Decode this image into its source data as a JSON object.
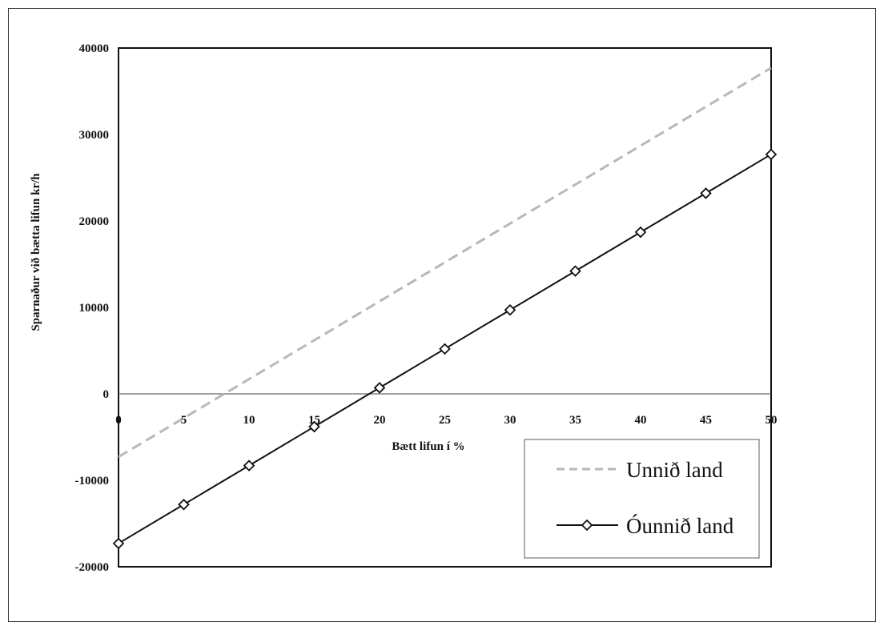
{
  "chart_data": {
    "type": "line",
    "title": "",
    "xlabel": "Bætt lifun í %",
    "ylabel": "Sparnaður við bætta lifun kr/h",
    "x": [
      0,
      5,
      10,
      15,
      20,
      25,
      30,
      35,
      40,
      45,
      50
    ],
    "xticks": [
      "0",
      "5",
      "10",
      "15",
      "20",
      "25",
      "30",
      "35",
      "40",
      "45",
      "50"
    ],
    "yticks": [
      "40000",
      "30000",
      "20000",
      "10000",
      "0",
      "-10000",
      "-20000"
    ],
    "xlim": [
      0,
      50
    ],
    "ylim": [
      -20000,
      40000
    ],
    "grid": false,
    "legend_position": "bottom-right",
    "series": [
      {
        "name": "Unnið land",
        "style": "dashed",
        "color": "#b8b8b8",
        "marker": "none",
        "values": [
          -7300,
          -2800,
          1700,
          6200,
          10700,
          15200,
          19700,
          24200,
          28700,
          33200,
          37700
        ]
      },
      {
        "name": "Óunnið land",
        "style": "solid",
        "color": "#111111",
        "marker": "diamond",
        "values": [
          -17300,
          -12800,
          -8300,
          -3800,
          700,
          5200,
          9700,
          14200,
          18700,
          23200,
          27700
        ]
      }
    ]
  }
}
